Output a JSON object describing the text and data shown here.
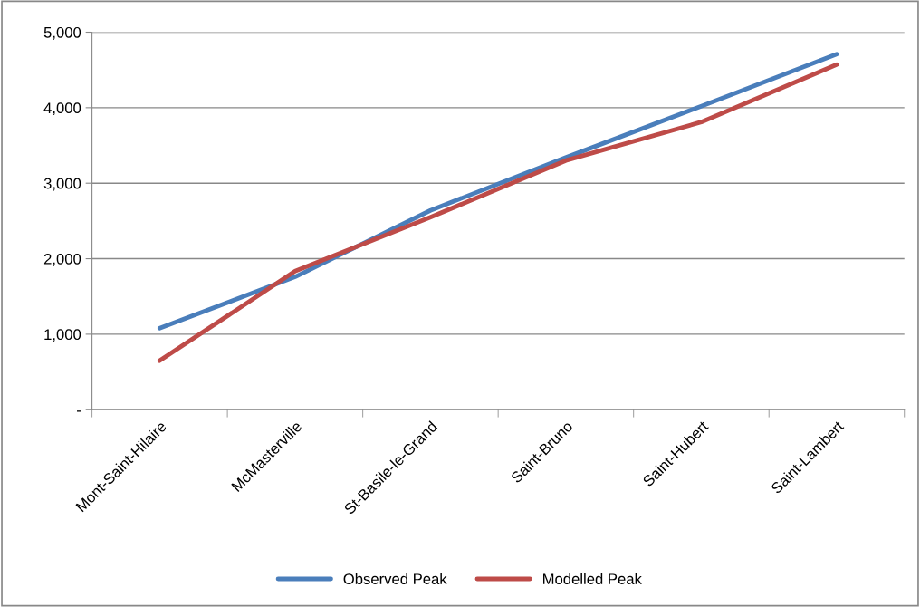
{
  "chart_data": {
    "type": "line",
    "categories": [
      "Mont-Saint-Hilaire",
      "McMasterville",
      "St-Basile-le-Grand",
      "Saint-Bruno",
      "Saint-Hubert",
      "Saint-Lambert"
    ],
    "series": [
      {
        "name": "Observed Peak",
        "color": "#4a7ebb",
        "values": [
          1080,
          1760,
          2640,
          3340,
          4020,
          4710
        ]
      },
      {
        "name": "Modelled Peak",
        "color": "#be4b48",
        "values": [
          650,
          1835,
          2550,
          3300,
          3810,
          4570
        ]
      }
    ],
    "ylim": [
      0,
      5000
    ],
    "yticks": [
      {
        "value": 0,
        "label": "-"
      },
      {
        "value": 1000,
        "label": "1,000"
      },
      {
        "value": 2000,
        "label": "2,000"
      },
      {
        "value": 3000,
        "label": "3,000"
      },
      {
        "value": 4000,
        "label": "4,000"
      },
      {
        "value": 5000,
        "label": "5,000"
      }
    ],
    "grid": "y",
    "legend": "bottom",
    "marker": "none",
    "line_style": "solid"
  }
}
